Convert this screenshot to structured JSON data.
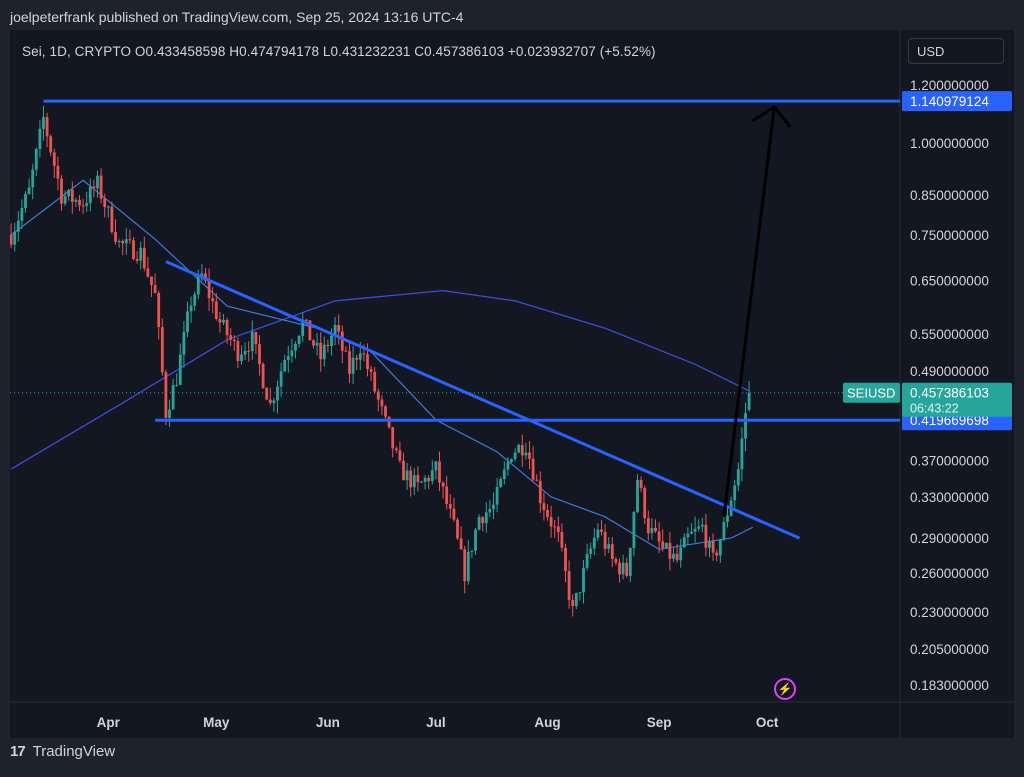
{
  "header": {
    "published": "joelpeterfrank published on TradingView.com, Sep 25, 2024 13:16 UTC-4"
  },
  "legend": {
    "text": "Sei, 1D, CRYPTO   O0.433458598   H0.474794178   L0.431232231   C0.457386103   +0.023932707 (+5.52%)"
  },
  "currency_button": "USD",
  "footer": {
    "brand": "TradingView",
    "logo": "17"
  },
  "icons": {
    "lightning": "lightning-icon"
  },
  "colors": {
    "up": "#26a69a",
    "down": "#ef5350",
    "drawing": "#2962ff",
    "ma": "#3f4bd8",
    "arrow": "#000000",
    "bg": "#131722",
    "text": "#d1d4dc"
  },
  "chart_data": {
    "type": "candlestick",
    "symbol": "SEIUSD",
    "scale": "log",
    "y_ticks": [
      1.2,
      1.0,
      0.85,
      0.75,
      0.65,
      0.55,
      0.49,
      0.37,
      0.33,
      0.29,
      0.26,
      0.23,
      0.205,
      0.183
    ],
    "y_tick_labels": [
      "1.200000000",
      "1.000000000",
      "0.850000000",
      "0.750000000",
      "0.650000000",
      "0.550000000",
      "0.490000000",
      "0.370000000",
      "0.330000000",
      "0.290000000",
      "0.260000000",
      "0.230000000",
      "0.205000000",
      "0.183000000"
    ],
    "x_labels": [
      "Apr",
      "May",
      "Jun",
      "Jul",
      "Aug",
      "Sep",
      "Oct"
    ],
    "x_label_day_offsets": [
      27,
      57,
      88,
      118,
      149,
      180,
      210
    ],
    "last_price": {
      "symbol": "SEIUSD",
      "value": "0.457386103",
      "countdown": "06:43:22"
    },
    "levels": [
      {
        "value": "1.140979124",
        "y": 1.140979124
      },
      {
        "value": "0.419669698",
        "y": 0.419669698
      }
    ],
    "anchors": [
      [
        0,
        0.75
      ],
      [
        5,
        0.86
      ],
      [
        9,
        1.08
      ],
      [
        14,
        0.85
      ],
      [
        20,
        0.83
      ],
      [
        24,
        0.88
      ],
      [
        30,
        0.73
      ],
      [
        36,
        0.71
      ],
      [
        40,
        0.62
      ],
      [
        43,
        0.43
      ],
      [
        46,
        0.48
      ],
      [
        50,
        0.61
      ],
      [
        53,
        0.66
      ],
      [
        58,
        0.57
      ],
      [
        63,
        0.52
      ],
      [
        67,
        0.54
      ],
      [
        72,
        0.44
      ],
      [
        76,
        0.51
      ],
      [
        81,
        0.57
      ],
      [
        86,
        0.51
      ],
      [
        90,
        0.56
      ],
      [
        94,
        0.49
      ],
      [
        97,
        0.53
      ],
      [
        103,
        0.43
      ],
      [
        108,
        0.36
      ],
      [
        113,
        0.34
      ],
      [
        118,
        0.36
      ],
      [
        123,
        0.3
      ],
      [
        126,
        0.26
      ],
      [
        130,
        0.31
      ],
      [
        134,
        0.32
      ],
      [
        139,
        0.38
      ],
      [
        143,
        0.39
      ],
      [
        147,
        0.33
      ],
      [
        152,
        0.29
      ],
      [
        156,
        0.23
      ],
      [
        160,
        0.27
      ],
      [
        163,
        0.3
      ],
      [
        167,
        0.27
      ],
      [
        171,
        0.26
      ],
      [
        174,
        0.35
      ],
      [
        177,
        0.3
      ],
      [
        181,
        0.28
      ],
      [
        185,
        0.27
      ],
      [
        188,
        0.29
      ],
      [
        192,
        0.3
      ],
      [
        195,
        0.27
      ],
      [
        198,
        0.3
      ],
      [
        200,
        0.33
      ],
      [
        202,
        0.36
      ],
      [
        204,
        0.43
      ],
      [
        205,
        0.457
      ]
    ],
    "ma_short": [
      [
        0,
        0.75
      ],
      [
        20,
        0.89
      ],
      [
        40,
        0.74
      ],
      [
        60,
        0.6
      ],
      [
        85,
        0.56
      ],
      [
        100,
        0.52
      ],
      [
        118,
        0.42
      ],
      [
        135,
        0.38
      ],
      [
        150,
        0.33
      ],
      [
        165,
        0.31
      ],
      [
        180,
        0.28
      ],
      [
        200,
        0.29
      ],
      [
        206,
        0.3
      ]
    ],
    "ma_long": [
      [
        0,
        0.36
      ],
      [
        30,
        0.44
      ],
      [
        60,
        0.54
      ],
      [
        90,
        0.61
      ],
      [
        120,
        0.63
      ],
      [
        140,
        0.61
      ],
      [
        165,
        0.56
      ],
      [
        190,
        0.5
      ],
      [
        205,
        0.46
      ]
    ],
    "trendline": {
      "from": [
        43,
        0.69
      ],
      "to": [
        219,
        0.29
      ]
    },
    "projection_arrow": {
      "from": [
        198,
        0.31
      ],
      "to": [
        212,
        1.12
      ]
    }
  }
}
